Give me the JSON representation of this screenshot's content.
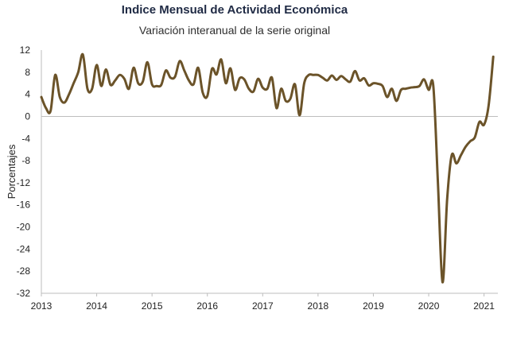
{
  "chart_data": {
    "type": "line",
    "title": "Indice Mensual de  Actividad Económica",
    "subtitle": "Variación interanual de la serie original",
    "ylabel": "Porcentajes",
    "xlabel": "",
    "ylim": [
      -32,
      12
    ],
    "xlim": [
      "2013-01",
      "2021-04"
    ],
    "y_ticks": [
      12,
      8,
      4,
      0,
      -4,
      -8,
      -12,
      -16,
      -20,
      -24,
      -28,
      -32
    ],
    "x_ticks": [
      "2013",
      "2014",
      "2015",
      "2016",
      "2017",
      "2018",
      "2019",
      "2020",
      "2021"
    ],
    "grid": false,
    "legend": "none",
    "line_color": "#6b5329",
    "series": [
      {
        "x": [
          "2013-01",
          "2013-02",
          "2013-03",
          "2013-04",
          "2013-05",
          "2013-06",
          "2013-07",
          "2013-08",
          "2013-09",
          "2013-10",
          "2013-11",
          "2013-12",
          "2014-01",
          "2014-02",
          "2014-03",
          "2014-04",
          "2014-05",
          "2014-06",
          "2014-07",
          "2014-08",
          "2014-09",
          "2014-10",
          "2014-11",
          "2014-12",
          "2015-01",
          "2015-02",
          "2015-03",
          "2015-04",
          "2015-05",
          "2015-06",
          "2015-07",
          "2015-08",
          "2015-09",
          "2015-10",
          "2015-11",
          "2015-12",
          "2016-01",
          "2016-02",
          "2016-03",
          "2016-04",
          "2016-05",
          "2016-06",
          "2016-07",
          "2016-08",
          "2016-09",
          "2016-10",
          "2016-11",
          "2016-12",
          "2017-01",
          "2017-02",
          "2017-03",
          "2017-04",
          "2017-05",
          "2017-06",
          "2017-07",
          "2017-08",
          "2017-09",
          "2017-10",
          "2017-11",
          "2017-12",
          "2018-01",
          "2018-02",
          "2018-03",
          "2018-04",
          "2018-05",
          "2018-06",
          "2018-07",
          "2018-08",
          "2018-09",
          "2018-10",
          "2018-11",
          "2018-12",
          "2019-01",
          "2019-02",
          "2019-03",
          "2019-04",
          "2019-05",
          "2019-06",
          "2019-07",
          "2019-08",
          "2019-09",
          "2019-10",
          "2019-11",
          "2019-12",
          "2020-01",
          "2020-02",
          "2020-03",
          "2020-04",
          "2020-05",
          "2020-06",
          "2020-07",
          "2020-08",
          "2020-09",
          "2020-10",
          "2020-11",
          "2020-12",
          "2021-01",
          "2021-02",
          "2021-03"
        ],
        "values": [
          3.5,
          1.5,
          1.0,
          7.5,
          3.5,
          2.5,
          4.0,
          6.0,
          8.0,
          11.2,
          5.0,
          5.0,
          9.3,
          5.5,
          8.5,
          5.7,
          6.5,
          7.5,
          6.8,
          5.0,
          8.8,
          6.0,
          6.3,
          9.8,
          5.8,
          5.5,
          5.7,
          8.3,
          7.0,
          7.2,
          10.0,
          8.3,
          6.5,
          5.8,
          8.8,
          4.3,
          3.7,
          8.6,
          7.6,
          10.3,
          6.0,
          8.7,
          4.8,
          6.9,
          6.7,
          5.0,
          4.5,
          6.8,
          5.2,
          5.0,
          7.0,
          1.5,
          5.0,
          2.8,
          3.2,
          5.8,
          0.2,
          6.0,
          7.5,
          7.5,
          7.5,
          7.0,
          6.5,
          7.4,
          6.6,
          7.3,
          6.7,
          6.3,
          8.2,
          6.5,
          6.9,
          5.6,
          6.0,
          5.9,
          5.5,
          3.5,
          5.0,
          2.8,
          4.8,
          5.0,
          5.2,
          5.3,
          5.5,
          6.7,
          4.8,
          5.5,
          -12.0,
          -30.0,
          -15.0,
          -7.0,
          -8.5,
          -7.0,
          -5.5,
          -4.5,
          -3.8,
          -1.0,
          -1.5,
          2.0,
          10.8
        ]
      }
    ]
  }
}
